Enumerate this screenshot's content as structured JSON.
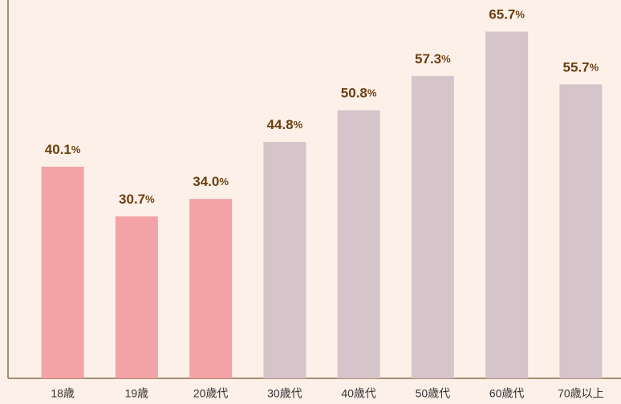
{
  "chart_data": {
    "type": "bar",
    "categories": [
      "18歳",
      "19歳",
      "20歳代",
      "30歳代",
      "40歳代",
      "50歳代",
      "60歳代",
      "70歳以上"
    ],
    "values": [
      40.1,
      30.7,
      34.0,
      44.8,
      50.8,
      57.3,
      65.7,
      55.7
    ],
    "value_labels": [
      "40.1%",
      "30.7%",
      "34.0%",
      "44.8%",
      "50.8%",
      "57.3%",
      "65.7%",
      "55.7%"
    ],
    "colors": [
      "#f3a3a6",
      "#f3a3a6",
      "#f3a3a6",
      "#d5c4ca",
      "#d5c4ca",
      "#d5c4ca",
      "#d5c4ca",
      "#d5c4ca"
    ],
    "ylim": [
      0,
      71.7
    ]
  }
}
